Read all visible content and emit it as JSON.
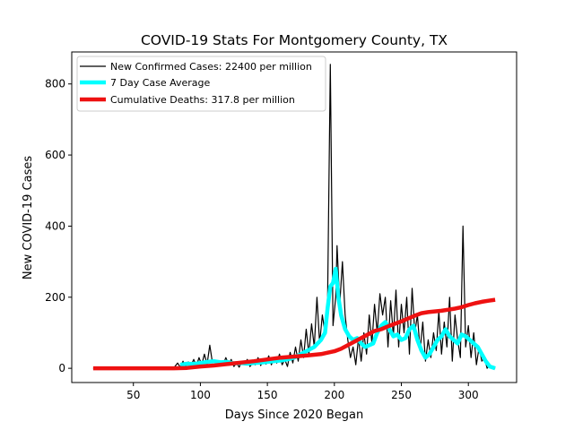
{
  "chart_data": {
    "type": "line",
    "title": "COVID-19 Stats For Montgomery County, TX",
    "xlabel": "Days Since 2020 Began",
    "ylabel": "New COVID-19 Cases",
    "xlim": [
      4,
      336
    ],
    "ylim": [
      -40,
      890
    ],
    "xticks": [
      50,
      100,
      150,
      200,
      250,
      300
    ],
    "yticks": [
      0,
      200,
      400,
      600,
      800
    ],
    "grid": false,
    "legend_position": "top-left",
    "series": [
      {
        "name": "New Confirmed Cases: 22400 per million",
        "color": "#000000",
        "width": 1.2,
        "points": [
          [
            20,
            0
          ],
          [
            40,
            0
          ],
          [
            60,
            0
          ],
          [
            80,
            0
          ],
          [
            83,
            15
          ],
          [
            85,
            3
          ],
          [
            87,
            20
          ],
          [
            89,
            5
          ],
          [
            91,
            18
          ],
          [
            93,
            8
          ],
          [
            95,
            25
          ],
          [
            97,
            6
          ],
          [
            99,
            30
          ],
          [
            101,
            10
          ],
          [
            103,
            40
          ],
          [
            105,
            12
          ],
          [
            107,
            65
          ],
          [
            109,
            15
          ],
          [
            111,
            22
          ],
          [
            113,
            8
          ],
          [
            115,
            20
          ],
          [
            117,
            10
          ],
          [
            119,
            30
          ],
          [
            121,
            12
          ],
          [
            123,
            25
          ],
          [
            125,
            5
          ],
          [
            127,
            15
          ],
          [
            129,
            3
          ],
          [
            131,
            20
          ],
          [
            133,
            10
          ],
          [
            135,
            25
          ],
          [
            137,
            5
          ],
          [
            139,
            15
          ],
          [
            141,
            10
          ],
          [
            143,
            30
          ],
          [
            145,
            8
          ],
          [
            147,
            25
          ],
          [
            149,
            12
          ],
          [
            151,
            35
          ],
          [
            153,
            10
          ],
          [
            155,
            30
          ],
          [
            157,
            15
          ],
          [
            159,
            40
          ],
          [
            161,
            10
          ],
          [
            163,
            25
          ],
          [
            165,
            5
          ],
          [
            167,
            45
          ],
          [
            169,
            15
          ],
          [
            171,
            60
          ],
          [
            173,
            20
          ],
          [
            175,
            80
          ],
          [
            177,
            30
          ],
          [
            179,
            110
          ],
          [
            181,
            40
          ],
          [
            183,
            125
          ],
          [
            185,
            60
          ],
          [
            187,
            200
          ],
          [
            189,
            70
          ],
          [
            191,
            150
          ],
          [
            193,
            100
          ],
          [
            195,
            200
          ],
          [
            197,
            855
          ],
          [
            199,
            120
          ],
          [
            201,
            200
          ],
          [
            202,
            345
          ],
          [
            204,
            180
          ],
          [
            206,
            300
          ],
          [
            208,
            150
          ],
          [
            210,
            80
          ],
          [
            212,
            30
          ],
          [
            214,
            60
          ],
          [
            216,
            10
          ],
          [
            218,
            85
          ],
          [
            220,
            20
          ],
          [
            222,
            100
          ],
          [
            224,
            40
          ],
          [
            226,
            150
          ],
          [
            228,
            70
          ],
          [
            230,
            180
          ],
          [
            232,
            100
          ],
          [
            234,
            210
          ],
          [
            236,
            150
          ],
          [
            238,
            200
          ],
          [
            240,
            60
          ],
          [
            242,
            190
          ],
          [
            244,
            90
          ],
          [
            246,
            220
          ],
          [
            248,
            60
          ],
          [
            250,
            180
          ],
          [
            252,
            100
          ],
          [
            254,
            200
          ],
          [
            256,
            40
          ],
          [
            258,
            225
          ],
          [
            260,
            100
          ],
          [
            262,
            150
          ],
          [
            264,
            50
          ],
          [
            266,
            130
          ],
          [
            268,
            20
          ],
          [
            270,
            80
          ],
          [
            272,
            30
          ],
          [
            274,
            100
          ],
          [
            276,
            50
          ],
          [
            278,
            160
          ],
          [
            280,
            40
          ],
          [
            282,
            130
          ],
          [
            284,
            60
          ],
          [
            286,
            200
          ],
          [
            288,
            20
          ],
          [
            290,
            150
          ],
          [
            292,
            80
          ],
          [
            294,
            30
          ],
          [
            296,
            400
          ],
          [
            298,
            60
          ],
          [
            300,
            120
          ],
          [
            302,
            30
          ],
          [
            304,
            100
          ],
          [
            306,
            10
          ],
          [
            308,
            60
          ],
          [
            310,
            20
          ],
          [
            312,
            30
          ],
          [
            314,
            0
          ],
          [
            316,
            10
          ],
          [
            318,
            0
          ],
          [
            320,
            0
          ]
        ]
      },
      {
        "name": "7 Day Case Average",
        "color": "#00ffff",
        "width": 4.5,
        "points": [
          [
            85,
            10
          ],
          [
            90,
            13
          ],
          [
            95,
            12
          ],
          [
            100,
            15
          ],
          [
            105,
            18
          ],
          [
            110,
            20
          ],
          [
            115,
            17
          ],
          [
            120,
            18
          ],
          [
            125,
            14
          ],
          [
            130,
            15
          ],
          [
            135,
            13
          ],
          [
            140,
            15
          ],
          [
            145,
            16
          ],
          [
            150,
            18
          ],
          [
            155,
            20
          ],
          [
            160,
            22
          ],
          [
            165,
            25
          ],
          [
            170,
            30
          ],
          [
            175,
            40
          ],
          [
            180,
            50
          ],
          [
            185,
            60
          ],
          [
            190,
            80
          ],
          [
            193,
            100
          ],
          [
            195,
            170
          ],
          [
            197,
            230
          ],
          [
            199,
            240
          ],
          [
            201,
            280
          ],
          [
            203,
            200
          ],
          [
            205,
            150
          ],
          [
            208,
            110
          ],
          [
            211,
            90
          ],
          [
            214,
            80
          ],
          [
            217,
            85
          ],
          [
            220,
            70
          ],
          [
            223,
            60
          ],
          [
            226,
            65
          ],
          [
            229,
            70
          ],
          [
            232,
            100
          ],
          [
            235,
            120
          ],
          [
            238,
            130
          ],
          [
            241,
            110
          ],
          [
            244,
            90
          ],
          [
            247,
            95
          ],
          [
            250,
            80
          ],
          [
            253,
            85
          ],
          [
            256,
            110
          ],
          [
            259,
            120
          ],
          [
            262,
            80
          ],
          [
            265,
            50
          ],
          [
            268,
            30
          ],
          [
            271,
            40
          ],
          [
            274,
            60
          ],
          [
            277,
            80
          ],
          [
            280,
            90
          ],
          [
            283,
            110
          ],
          [
            286,
            90
          ],
          [
            289,
            80
          ],
          [
            292,
            70
          ],
          [
            295,
            95
          ],
          [
            298,
            90
          ],
          [
            301,
            80
          ],
          [
            304,
            70
          ],
          [
            307,
            60
          ],
          [
            310,
            40
          ],
          [
            313,
            20
          ],
          [
            316,
            5
          ],
          [
            320,
            0
          ]
        ]
      },
      {
        "name": "Cumulative Deaths: 317.8 per million",
        "color": "#ee1111",
        "width": 4.5,
        "points": [
          [
            20,
            0
          ],
          [
            40,
            0
          ],
          [
            60,
            0
          ],
          [
            80,
            0
          ],
          [
            90,
            1
          ],
          [
            100,
            5
          ],
          [
            110,
            8
          ],
          [
            120,
            12
          ],
          [
            130,
            16
          ],
          [
            140,
            20
          ],
          [
            150,
            25
          ],
          [
            160,
            30
          ],
          [
            170,
            33
          ],
          [
            180,
            36
          ],
          [
            190,
            40
          ],
          [
            195,
            44
          ],
          [
            200,
            48
          ],
          [
            205,
            55
          ],
          [
            210,
            65
          ],
          [
            215,
            75
          ],
          [
            220,
            85
          ],
          [
            225,
            95
          ],
          [
            230,
            105
          ],
          [
            235,
            110
          ],
          [
            240,
            118
          ],
          [
            245,
            125
          ],
          [
            250,
            132
          ],
          [
            255,
            140
          ],
          [
            260,
            148
          ],
          [
            265,
            155
          ],
          [
            270,
            158
          ],
          [
            275,
            160
          ],
          [
            280,
            162
          ],
          [
            285,
            165
          ],
          [
            290,
            168
          ],
          [
            295,
            172
          ],
          [
            300,
            178
          ],
          [
            305,
            183
          ],
          [
            310,
            187
          ],
          [
            315,
            190
          ],
          [
            320,
            193
          ]
        ]
      }
    ]
  }
}
